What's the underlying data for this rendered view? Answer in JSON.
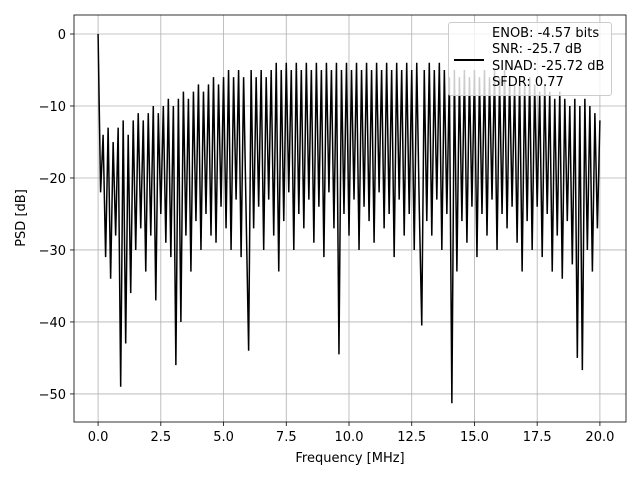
{
  "chart_data": {
    "type": "line",
    "xlabel": "Frequency [MHz]",
    "ylabel": "PSD [dB]",
    "x": [
      0,
      0.1,
      0.2,
      0.3,
      0.4,
      0.5,
      0.6,
      0.7,
      0.8,
      0.9,
      1,
      1.1,
      1.2,
      1.3,
      1.4,
      1.5,
      1.6,
      1.7,
      1.8,
      1.9,
      2,
      2.1,
      2.2,
      2.3,
      2.4,
      2.5,
      2.6,
      2.7,
      2.8,
      2.9,
      3,
      3.1,
      3.2,
      3.3,
      3.4,
      3.5,
      3.6,
      3.7,
      3.8,
      3.9,
      4,
      4.1,
      4.2,
      4.3,
      4.4,
      4.5,
      4.6,
      4.7,
      4.8,
      4.9,
      5,
      5.1,
      5.2,
      5.3,
      5.4,
      5.5,
      5.6,
      5.7,
      5.8,
      5.9,
      6,
      6.1,
      6.2,
      6.3,
      6.4,
      6.5,
      6.6,
      6.7,
      6.8,
      6.9,
      7,
      7.1,
      7.2,
      7.3,
      7.4,
      7.5,
      7.6,
      7.7,
      7.8,
      7.9,
      8,
      8.1,
      8.2,
      8.3,
      8.4,
      8.5,
      8.6,
      8.7,
      8.8,
      8.9,
      9,
      9.1,
      9.2,
      9.3,
      9.4,
      9.5,
      9.6,
      9.7,
      9.8,
      9.9,
      10,
      10.1,
      10.2,
      10.3,
      10.4,
      10.5,
      10.6,
      10.7,
      10.8,
      10.9,
      11,
      11.1,
      11.2,
      11.3,
      11.4,
      11.5,
      11.6,
      11.7,
      11.8,
      11.9,
      12,
      12.1,
      12.2,
      12.3,
      12.4,
      12.5,
      12.6,
      12.7,
      12.8,
      12.9,
      13,
      13.1,
      13.2,
      13.3,
      13.4,
      13.5,
      13.6,
      13.7,
      13.8,
      13.9,
      14,
      14.1,
      14.2,
      14.3,
      14.4,
      14.5,
      14.6,
      14.7,
      14.8,
      14.9,
      15,
      15.1,
      15.2,
      15.3,
      15.4,
      15.5,
      15.6,
      15.7,
      15.8,
      15.9,
      16,
      16.1,
      16.2,
      16.3,
      16.4,
      16.5,
      16.6,
      16.7,
      16.8,
      16.9,
      17,
      17.1,
      17.2,
      17.3,
      17.4,
      17.5,
      17.6,
      17.7,
      17.8,
      17.9,
      18,
      18.1,
      18.2,
      18.3,
      18.4,
      18.5,
      18.6,
      18.7,
      18.8,
      18.9,
      19,
      19.1,
      19.2,
      19.3,
      19.4,
      19.5,
      19.6,
      19.7,
      19.8,
      19.9,
      20
    ],
    "series": [
      {
        "name": "ENOB: -4.57 bits\nSNR: -25.7 dB\nSINAD: -25.72 dB\nSFDR: 0.77",
        "color": "#000000",
        "values": [
          0,
          -22,
          -14,
          -31,
          -13,
          -34,
          -15,
          -28,
          -13,
          -49,
          -12,
          -43,
          -14,
          -36,
          -12,
          -30,
          -11,
          -27,
          -12,
          -33,
          -11,
          -28,
          -10,
          -37,
          -11,
          -25,
          -10,
          -29,
          -9,
          -31,
          -10,
          -46,
          -9,
          -40,
          -8,
          -28,
          -9,
          -33,
          -8,
          -26,
          -7,
          -30,
          -8,
          -25,
          -7,
          -28,
          -6,
          -29,
          -7,
          -24,
          -6,
          -27,
          -5,
          -30,
          -6,
          -23,
          -5,
          -31,
          -6,
          -25,
          -44,
          -5,
          -27,
          -6,
          -24,
          -5,
          -30,
          -6,
          -23,
          -5,
          -28,
          -4,
          -33,
          -5,
          -26,
          -4,
          -22,
          -5,
          -30,
          -4,
          -25,
          -5,
          -27,
          -4,
          -23,
          -5,
          -29,
          -4,
          -24,
          -5,
          -31,
          -4,
          -22,
          -5,
          -27,
          -4,
          -44.5,
          -5,
          -25,
          -4,
          -28,
          -5,
          -23,
          -4,
          -30,
          -5,
          -24,
          -4,
          -26,
          -5,
          -29,
          -4,
          -22,
          -5,
          -27,
          -4,
          -25,
          -5,
          -31,
          -4,
          -23,
          -5,
          -28,
          -4,
          -25,
          -5,
          -30,
          -4,
          -24,
          -40.5,
          -5,
          -26,
          -4,
          -28,
          -5,
          -23,
          -4,
          -30,
          -5,
          -25,
          -6,
          -51.3,
          -5,
          -33,
          -6,
          -26,
          -5,
          -29,
          -6,
          -24,
          -5,
          -31,
          -6,
          -25,
          -5,
          -28,
          -6,
          -23,
          -5,
          -30,
          -6,
          -25,
          -5,
          -27,
          -6,
          -24,
          -7,
          -29,
          -6,
          -33,
          -7,
          -26,
          -6,
          -30,
          -7,
          -24,
          -8,
          -31,
          -7,
          -25,
          -8,
          -33,
          -9,
          -28,
          -8,
          -34,
          -9,
          -26,
          -10,
          -32,
          -9,
          -45,
          -10,
          -46.7,
          -9,
          -30,
          -10,
          -33,
          -11,
          -27,
          -12
        ]
      }
    ],
    "xlim": [
      -0.96,
      21.04
    ],
    "xticks": [
      {
        "value": 0,
        "label": "0.0"
      },
      2.5,
      {
        "value": 5,
        "label": "5.0"
      },
      7.5,
      {
        "value": 10,
        "label": "10.0"
      },
      12.5,
      {
        "value": 15,
        "label": "15.0"
      },
      17.5,
      {
        "value": 20,
        "label": "20.0"
      }
    ],
    "ylim": [
      -53.9,
      2.64
    ],
    "yticks": [
      {
        "value": -50,
        "label": "−50"
      },
      {
        "value": -40,
        "label": "−40"
      },
      {
        "value": -30,
        "label": "−30"
      },
      {
        "value": -20,
        "label": "−20"
      },
      {
        "value": -10,
        "label": "−10"
      },
      0
    ],
    "grid": true,
    "legend": "upper right"
  }
}
